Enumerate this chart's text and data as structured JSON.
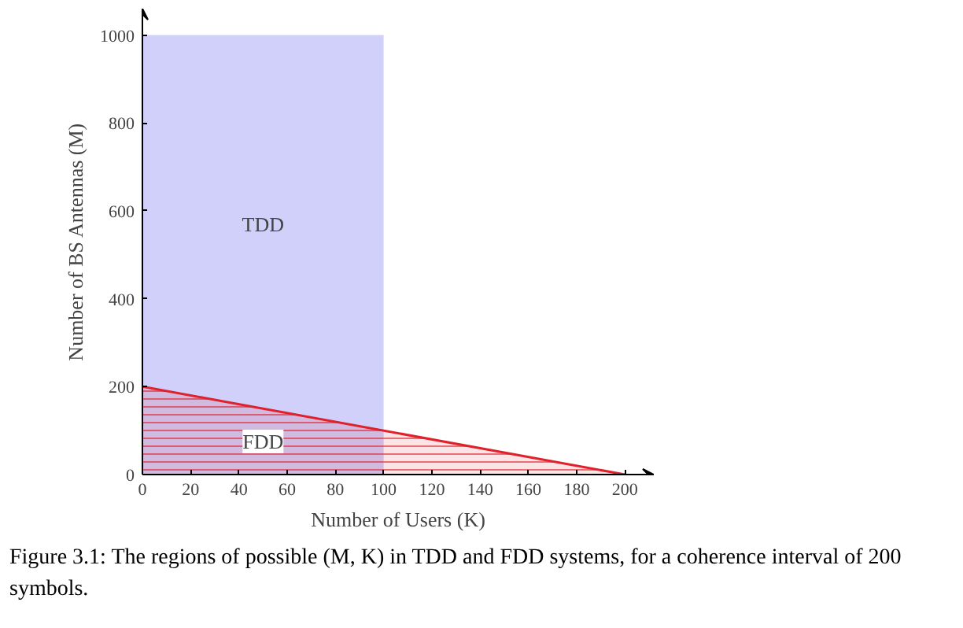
{
  "chart_data": {
    "type": "area",
    "xlabel": "Number of Users (K)",
    "ylabel": "Number of BS Antennas (M)",
    "series": [
      {
        "name": "TDD",
        "x": [
          0,
          100
        ],
        "values": [
          1000,
          1000
        ],
        "color": "#d0d0fa"
      },
      {
        "name": "FDD",
        "x": [
          0,
          200
        ],
        "values": [
          200,
          0
        ],
        "color": "#e0202a"
      }
    ],
    "xlim": [
      0,
      212
    ],
    "ylim": [
      0,
      1060
    ],
    "xticks": [
      0,
      20,
      40,
      60,
      80,
      100,
      120,
      140,
      160,
      180,
      200
    ],
    "yticks": [
      0,
      200,
      400,
      600,
      800,
      1000
    ],
    "grid": false,
    "annotations": [
      "Figure 3.1: The regions of possible (M, K) in TDD and FDD systems, for a coherence interval of 200 symbols."
    ]
  }
}
